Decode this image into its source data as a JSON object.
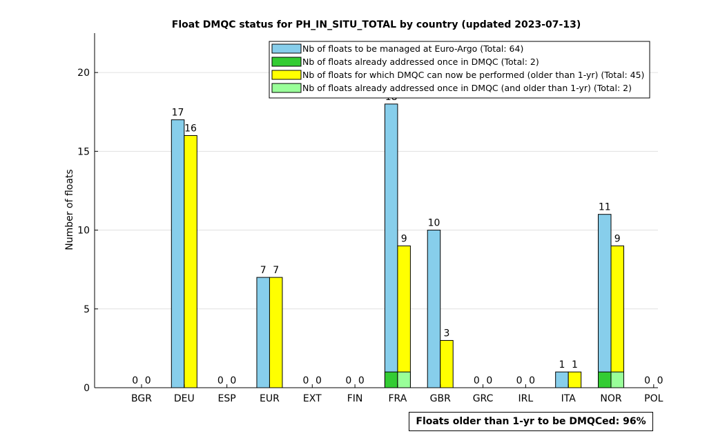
{
  "chart_data": {
    "type": "bar",
    "title": "Float DMQC status for PH_IN_SITU_TOTAL by country (updated 2023-07-13)",
    "ylabel": "Number of floats",
    "xlabel": "",
    "ylim": [
      0,
      22.5
    ],
    "yticks": [
      0,
      5,
      10,
      15,
      20
    ],
    "grid": "horizontal",
    "legend_position": "top-right",
    "categories": [
      "BGR",
      "DEU",
      "ESP",
      "EUR",
      "EXT",
      "FIN",
      "FRA",
      "GBR",
      "GRC",
      "IRL",
      "ITA",
      "NOR",
      "POL"
    ],
    "series": [
      {
        "name": "Nb of floats to be managed at Euro-Argo (Total: 64)",
        "color": "#87ceeb",
        "values": [
          0,
          17,
          0,
          7,
          0,
          0,
          18,
          10,
          0,
          0,
          1,
          11,
          0
        ]
      },
      {
        "name": "Nb of floats already addressed once in DMQC (Total: 2)",
        "color": "#33cc33",
        "values": [
          0,
          0,
          0,
          0,
          0,
          0,
          1,
          0,
          0,
          0,
          0,
          1,
          0
        ]
      },
      {
        "name": "Nb of floats for which DMQC can now be performed (older than 1-yr) (Total: 45)",
        "color": "#ffff00",
        "values": [
          0,
          16,
          0,
          7,
          0,
          0,
          9,
          3,
          0,
          0,
          1,
          9,
          0
        ]
      },
      {
        "name": "Nb of floats already addressed once in DMQC (and older than 1-yr) (Total: 2)",
        "color": "#99ff99",
        "values": [
          0,
          0,
          0,
          0,
          0,
          0,
          1,
          0,
          0,
          0,
          0,
          1,
          0
        ]
      }
    ]
  },
  "footer": {
    "text": "Floats older than 1-yr to be DMQCed: 96%"
  }
}
